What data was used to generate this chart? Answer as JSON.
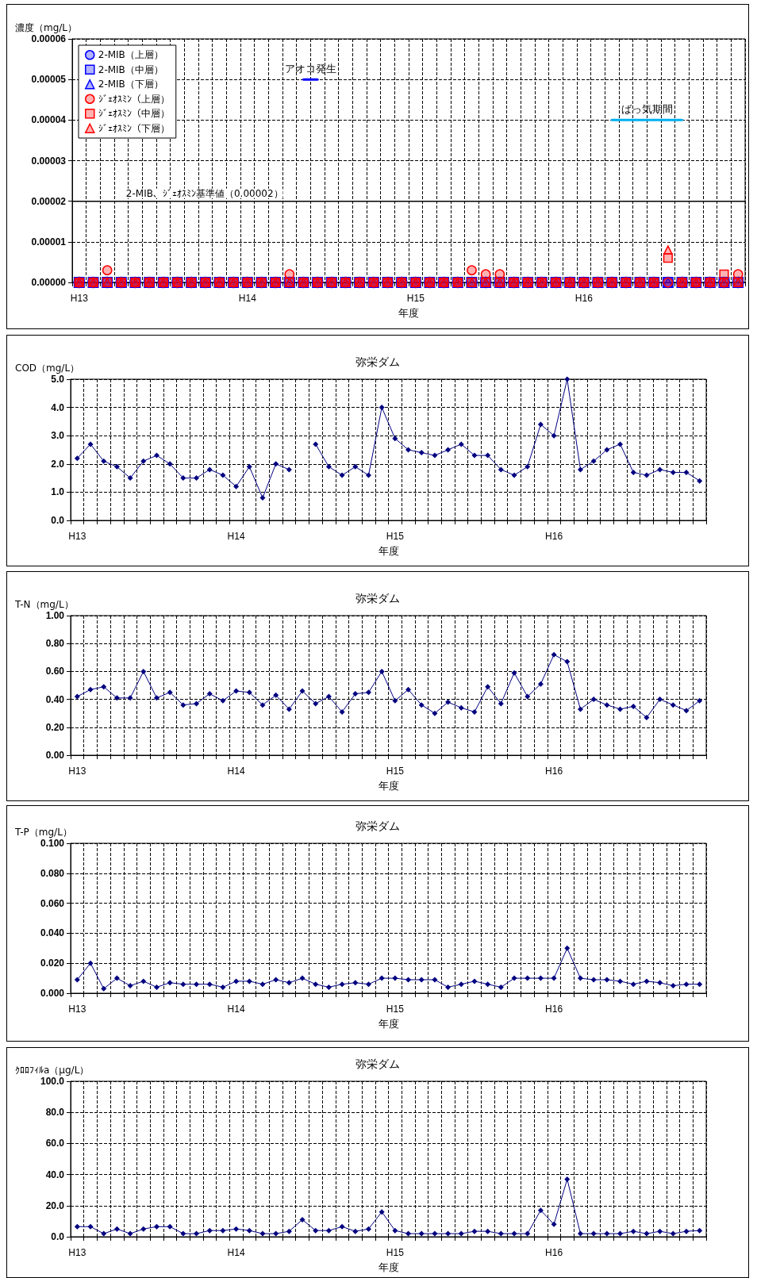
{
  "chart_data": [
    {
      "type": "scatter",
      "xlabel": "年度",
      "ylabel": "濃度（mg/L）",
      "categories": [
        "H13",
        null,
        null,
        null,
        null,
        null,
        null,
        null,
        null,
        null,
        null,
        null,
        "H14",
        null,
        null,
        null,
        null,
        null,
        null,
        null,
        null,
        null,
        null,
        null,
        "H15",
        null,
        null,
        null,
        null,
        null,
        null,
        null,
        null,
        null,
        null,
        null,
        "H16",
        null,
        null,
        null,
        null,
        null,
        null,
        null,
        null,
        null,
        null,
        null
      ],
      "ylim": [
        0,
        6e-05
      ],
      "yticks": [
        {
          "value": 0,
          "label": "0.00000"
        },
        {
          "value": 1e-05,
          "label": "0.00001"
        },
        {
          "value": 2e-05,
          "label": "0.00002"
        },
        {
          "value": 3e-05,
          "label": "0.00003"
        },
        {
          "value": 4e-05,
          "label": "0.00004"
        },
        {
          "value": 5e-05,
          "label": "0.00005"
        },
        {
          "value": 6e-05,
          "label": "0.00006"
        }
      ],
      "grid": true,
      "legend": "top left",
      "ref_lines": [
        {
          "axis": "y",
          "value": 2e-05,
          "label": "2-MIB、ｼﾞｪｵｽﾐﾝ基準値（0.00002）",
          "color": "#000000"
        }
      ],
      "series": [
        {
          "name": "2-MIB（上層）",
          "color": "#0000ff",
          "marker": "circle",
          "values": [
            0,
            0,
            0,
            0,
            0,
            0,
            0,
            0,
            0,
            0,
            0,
            0,
            0,
            0,
            0,
            0,
            0,
            0,
            0,
            0,
            0,
            0,
            0,
            0,
            0,
            0,
            0,
            0,
            0,
            0,
            0,
            0,
            0,
            0,
            0,
            0,
            0,
            0,
            0,
            0,
            0,
            0,
            0,
            0,
            0,
            0,
            0,
            0
          ]
        },
        {
          "name": "2-MIB（中層）",
          "color": "#0000ff",
          "marker": "square",
          "values": [
            0,
            0,
            0,
            0,
            0,
            0,
            0,
            0,
            0,
            0,
            0,
            0,
            0,
            0,
            0,
            0,
            0,
            0,
            0,
            0,
            0,
            0,
            0,
            0,
            0,
            0,
            0,
            0,
            0,
            0,
            0,
            0,
            0,
            0,
            0,
            0,
            0,
            0,
            0,
            0,
            0,
            0,
            0,
            0,
            0,
            0,
            0,
            0
          ]
        },
        {
          "name": "2-MIB（下層）",
          "color": "#0000ff",
          "marker": "triangle",
          "values": [
            0,
            0,
            0,
            0,
            0,
            0,
            0,
            0,
            0,
            0,
            0,
            0,
            0,
            0,
            0,
            0,
            0,
            0,
            0,
            0,
            0,
            0,
            0,
            0,
            0,
            0,
            0,
            0,
            0,
            0,
            0,
            0,
            0,
            0,
            0,
            0,
            0,
            0,
            0,
            0,
            0,
            0,
            0,
            0,
            0,
            0,
            0,
            0
          ]
        },
        {
          "name": "ｼﾞｪｵｽﾐﾝ（上層）",
          "color": "#ff0000",
          "marker": "circle",
          "values": [
            0,
            0,
            3e-06,
            0,
            0,
            0,
            0,
            0,
            0,
            0,
            0,
            0,
            0,
            0,
            0,
            2e-06,
            0,
            0,
            0,
            0,
            0,
            0,
            0,
            0,
            0,
            0,
            0,
            0,
            3e-06,
            2e-06,
            2e-06,
            0,
            0,
            0,
            0,
            0,
            0,
            0,
            0,
            0,
            0,
            0,
            0,
            0,
            0,
            0,
            0,
            2e-06
          ]
        },
        {
          "name": "ｼﾞｪｵｽﾐﾝ（中層）",
          "color": "#ff0000",
          "marker": "square",
          "values": [
            0,
            0,
            0,
            0,
            0,
            0,
            0,
            0,
            0,
            0,
            0,
            0,
            0,
            0,
            0,
            0,
            0,
            0,
            0,
            0,
            0,
            0,
            0,
            0,
            0,
            0,
            0,
            0,
            0,
            0,
            0,
            0,
            0,
            0,
            0,
            0,
            0,
            0,
            0,
            0,
            0,
            0,
            6e-06,
            0,
            0,
            0,
            2e-06,
            0
          ]
        },
        {
          "name": "ｼﾞｪｵｽﾐﾝ（下層）",
          "color": "#ff0000",
          "marker": "triangle",
          "values": [
            0,
            0,
            0,
            0,
            0,
            0,
            0,
            0,
            0,
            0,
            0,
            0,
            0,
            0,
            0,
            0,
            0,
            0,
            0,
            0,
            0,
            0,
            0,
            0,
            0,
            0,
            0,
            0,
            0,
            0,
            0,
            0,
            0,
            0,
            0,
            0,
            0,
            0,
            0,
            0,
            0,
            0,
            8e-06,
            0,
            0,
            0,
            0,
            0
          ]
        },
        {
          "name": "アオコ発生",
          "type": "line",
          "color": "#0000ff",
          "marker": "none",
          "values": [
            null,
            null,
            null,
            null,
            null,
            null,
            null,
            null,
            null,
            null,
            null,
            null,
            null,
            null,
            null,
            null,
            5e-05,
            5e-05,
            null,
            null,
            null,
            null,
            null,
            null,
            null,
            null,
            null,
            null,
            null,
            null,
            null,
            null,
            null,
            null,
            null,
            null,
            null,
            null,
            null,
            null,
            null,
            null,
            null,
            null,
            null,
            null,
            null,
            null
          ]
        },
        {
          "name": "ばっ気期間",
          "type": "line",
          "color": "#00b0f0",
          "marker": "none",
          "values": [
            null,
            null,
            null,
            null,
            null,
            null,
            null,
            null,
            null,
            null,
            null,
            null,
            null,
            null,
            null,
            null,
            null,
            null,
            null,
            null,
            null,
            null,
            null,
            null,
            null,
            null,
            null,
            null,
            null,
            null,
            null,
            null,
            null,
            null,
            null,
            null,
            null,
            null,
            4e-05,
            4e-05,
            4e-05,
            4e-05,
            4e-05,
            4e-05,
            null,
            null,
            null,
            null
          ]
        }
      ]
    },
    {
      "type": "line",
      "title": "弥栄ダム",
      "xlabel": "年度",
      "ylabel": "COD（mg/L）",
      "marker": "diamond",
      "color": "#000080",
      "grid": true,
      "categories": [
        "H13",
        null,
        null,
        null,
        null,
        null,
        null,
        null,
        null,
        null,
        null,
        null,
        "H14",
        null,
        null,
        null,
        null,
        null,
        null,
        null,
        null,
        null,
        null,
        null,
        "H15",
        null,
        null,
        null,
        null,
        null,
        null,
        null,
        null,
        null,
        null,
        null,
        "H16",
        null,
        null,
        null,
        null,
        null,
        null,
        null,
        null,
        null,
        null,
        null
      ],
      "ylim": [
        0,
        5
      ],
      "yticks": [
        {
          "value": 0,
          "label": "0.0"
        },
        {
          "value": 1,
          "label": "1.0"
        },
        {
          "value": 2,
          "label": "2.0"
        },
        {
          "value": 3,
          "label": "3.0"
        },
        {
          "value": 4,
          "label": "4.0"
        },
        {
          "value": 5,
          "label": "5.0"
        }
      ],
      "values": [
        2.2,
        2.7,
        2.1,
        1.9,
        1.5,
        2.1,
        2.3,
        2.0,
        1.5,
        1.5,
        1.8,
        1.6,
        1.2,
        1.9,
        0.8,
        2.0,
        1.8,
        null,
        2.7,
        1.9,
        1.6,
        1.9,
        1.6,
        4.0,
        2.9,
        2.5,
        2.4,
        2.3,
        2.5,
        2.7,
        2.3,
        2.3,
        1.8,
        1.6,
        1.9,
        3.4,
        3.0,
        5.0,
        1.8,
        2.1,
        2.5,
        2.7,
        1.7,
        1.6,
        1.8,
        1.7,
        1.7,
        1.4
      ]
    },
    {
      "type": "line",
      "title": "弥栄ダム",
      "xlabel": "年度",
      "ylabel": "T-N（mg/L）",
      "marker": "diamond",
      "color": "#000080",
      "grid": true,
      "categories": [
        "H13",
        null,
        null,
        null,
        null,
        null,
        null,
        null,
        null,
        null,
        null,
        null,
        "H14",
        null,
        null,
        null,
        null,
        null,
        null,
        null,
        null,
        null,
        null,
        null,
        "H15",
        null,
        null,
        null,
        null,
        null,
        null,
        null,
        null,
        null,
        null,
        null,
        "H16",
        null,
        null,
        null,
        null,
        null,
        null,
        null,
        null,
        null,
        null,
        null
      ],
      "ylim": [
        0,
        1
      ],
      "yticks": [
        {
          "value": 0,
          "label": "0.00"
        },
        {
          "value": 0.2,
          "label": "0.20"
        },
        {
          "value": 0.4,
          "label": "0.40"
        },
        {
          "value": 0.6,
          "label": "0.60"
        },
        {
          "value": 0.8,
          "label": "0.80"
        },
        {
          "value": 1,
          "label": "1.00"
        }
      ],
      "values": [
        0.42,
        0.47,
        0.49,
        0.41,
        0.41,
        0.6,
        0.41,
        0.45,
        0.36,
        0.37,
        0.44,
        0.39,
        0.46,
        0.45,
        0.36,
        0.43,
        0.33,
        0.46,
        0.37,
        0.42,
        0.31,
        0.44,
        0.45,
        0.6,
        0.39,
        0.47,
        0.36,
        0.3,
        0.38,
        0.34,
        0.31,
        0.49,
        0.37,
        0.59,
        0.42,
        0.51,
        0.72,
        0.67,
        0.33,
        0.4,
        0.36,
        0.33,
        0.35,
        0.27,
        0.4,
        0.36,
        0.32,
        0.39
      ]
    },
    {
      "type": "line",
      "title": "弥栄ダム",
      "xlabel": "年度",
      "ylabel": "T-P（mg/L）",
      "marker": "diamond",
      "color": "#000080",
      "grid": true,
      "categories": [
        "H13",
        null,
        null,
        null,
        null,
        null,
        null,
        null,
        null,
        null,
        null,
        null,
        "H14",
        null,
        null,
        null,
        null,
        null,
        null,
        null,
        null,
        null,
        null,
        null,
        "H15",
        null,
        null,
        null,
        null,
        null,
        null,
        null,
        null,
        null,
        null,
        null,
        "H16",
        null,
        null,
        null,
        null,
        null,
        null,
        null,
        null,
        null,
        null,
        null
      ],
      "ylim": [
        0,
        0.1
      ],
      "yticks": [
        {
          "value": 0,
          "label": "0.000"
        },
        {
          "value": 0.02,
          "label": "0.020"
        },
        {
          "value": 0.04,
          "label": "0.040"
        },
        {
          "value": 0.06,
          "label": "0.060"
        },
        {
          "value": 0.08,
          "label": "0.080"
        },
        {
          "value": 0.1,
          "label": "0.100"
        }
      ],
      "values": [
        0.009,
        0.02,
        0.003,
        0.01,
        0.005,
        0.008,
        0.004,
        0.007,
        0.006,
        0.006,
        0.006,
        0.004,
        0.008,
        0.008,
        0.006,
        0.009,
        0.007,
        0.01,
        0.006,
        0.004,
        0.006,
        0.007,
        0.006,
        0.01,
        0.01,
        0.009,
        0.009,
        0.009,
        0.004,
        0.006,
        0.008,
        0.006,
        0.004,
        0.01,
        0.01,
        0.01,
        0.01,
        0.03,
        0.01,
        0.009,
        0.009,
        0.008,
        0.006,
        0.008,
        0.007,
        0.005,
        0.006,
        0.006
      ]
    },
    {
      "type": "line",
      "title": "弥栄ダム",
      "xlabel": "年度",
      "ylabel": "ｸﾛﾛﾌｨﾙa（μg/L）",
      "marker": "diamond",
      "color": "#000080",
      "grid": true,
      "categories": [
        "H13",
        null,
        null,
        null,
        null,
        null,
        null,
        null,
        null,
        null,
        null,
        null,
        "H14",
        null,
        null,
        null,
        null,
        null,
        null,
        null,
        null,
        null,
        null,
        null,
        "H15",
        null,
        null,
        null,
        null,
        null,
        null,
        null,
        null,
        null,
        null,
        null,
        "H16",
        null,
        null,
        null,
        null,
        null,
        null,
        null,
        null,
        null,
        null,
        null
      ],
      "ylim": [
        0,
        100
      ],
      "yticks": [
        {
          "value": 0,
          "label": "0.0"
        },
        {
          "value": 20,
          "label": "20.0"
        },
        {
          "value": 40,
          "label": "40.0"
        },
        {
          "value": 60,
          "label": "60.0"
        },
        {
          "value": 80,
          "label": "80.0"
        },
        {
          "value": 100,
          "label": "100.0"
        }
      ],
      "values": [
        6.5,
        6.5,
        2,
        5,
        2,
        5,
        6.5,
        6.5,
        2,
        2,
        4,
        4,
        5,
        4,
        2,
        2,
        3.5,
        11,
        4,
        4,
        6.5,
        3.5,
        5,
        16,
        4,
        2,
        2,
        2,
        2,
        2,
        3.5,
        3.5,
        2,
        2,
        2,
        17,
        8,
        37,
        2,
        2,
        2,
        2,
        3.5,
        2,
        3.5,
        2,
        3.5,
        4
      ]
    }
  ]
}
